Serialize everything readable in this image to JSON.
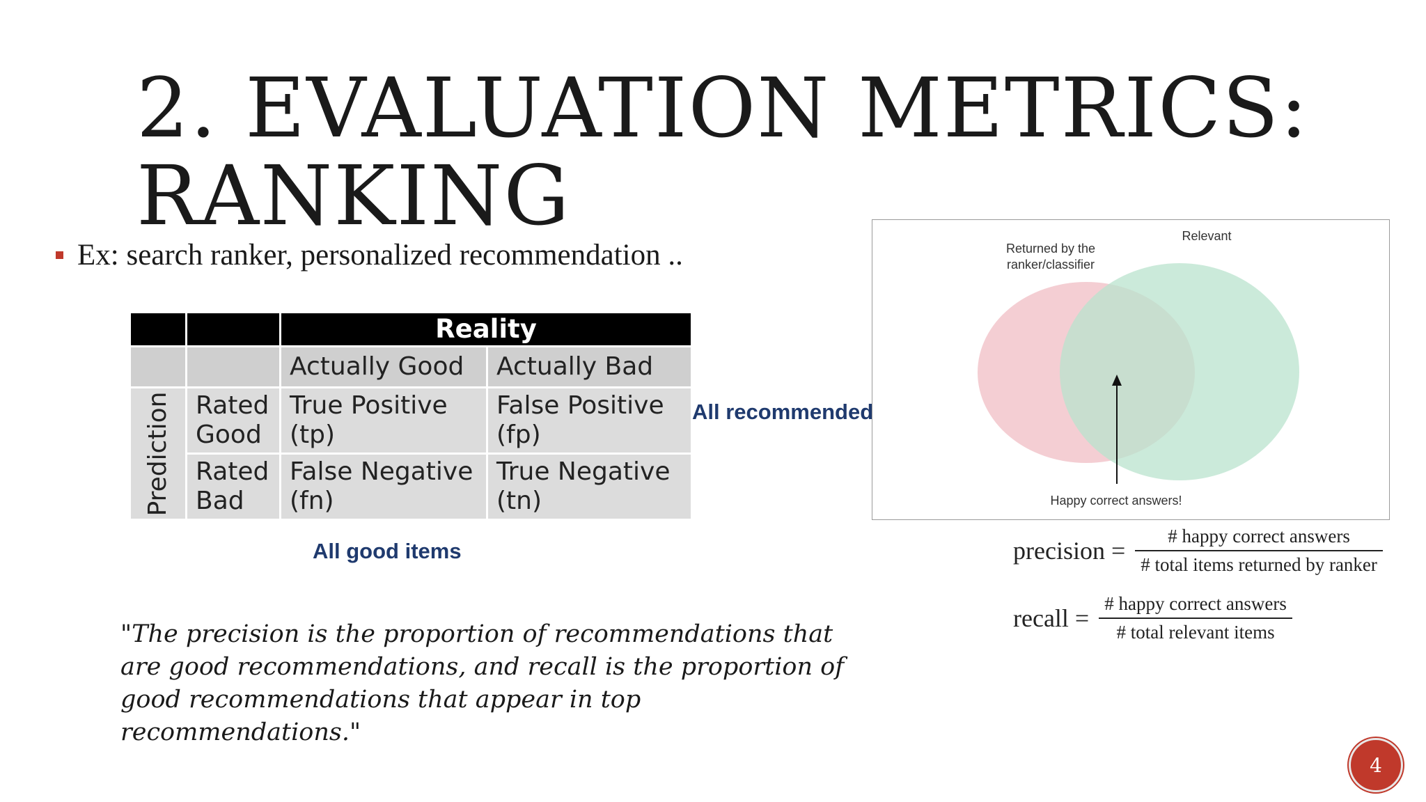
{
  "slide": {
    "title_line1": "2. EVALUATION METRICS:",
    "title_line2": "RANKING",
    "bullet": "Ex: search ranker, personalized recommendation ..",
    "page_number": "4",
    "accent_color": "#c0392b"
  },
  "matrix": {
    "header_reality": "Reality",
    "col_actually_good": "Actually Good",
    "col_actually_bad": "Actually Bad",
    "prediction_label": "Prediction",
    "row_rated_good": [
      "Rated",
      "Good"
    ],
    "row_rated_bad": [
      "Rated",
      "Bad"
    ],
    "true_positive": [
      "True Positive",
      "(tp)"
    ],
    "false_positive": [
      "False Positive",
      "(fp)"
    ],
    "false_negative": [
      "False Negative",
      "(fn)"
    ],
    "true_negative": [
      "True Negative",
      "(tn)"
    ],
    "label_all_recommended": "All recommended",
    "label_all_good_items": "All good items",
    "label_color": "#1f3a6e"
  },
  "quote": "\"The precision is the proportion of recommendations that are good recommendations, and recall is the proportion of good recommendations that appear in top recommendations.\"",
  "venn": {
    "returned_label": [
      "Returned by the",
      "ranker/classifier"
    ],
    "relevant_label": "Relevant",
    "happy_label": "Happy correct answers!",
    "returned_color": "#f2c6cb",
    "relevant_color": "#b9e3cd"
  },
  "formulas": {
    "precision_lhs": "precision =",
    "precision_num": "# happy correct answers",
    "precision_den": "# total items returned by ranker",
    "recall_lhs": "recall =",
    "recall_num": "# happy correct answers",
    "recall_den": "# total relevant items"
  }
}
